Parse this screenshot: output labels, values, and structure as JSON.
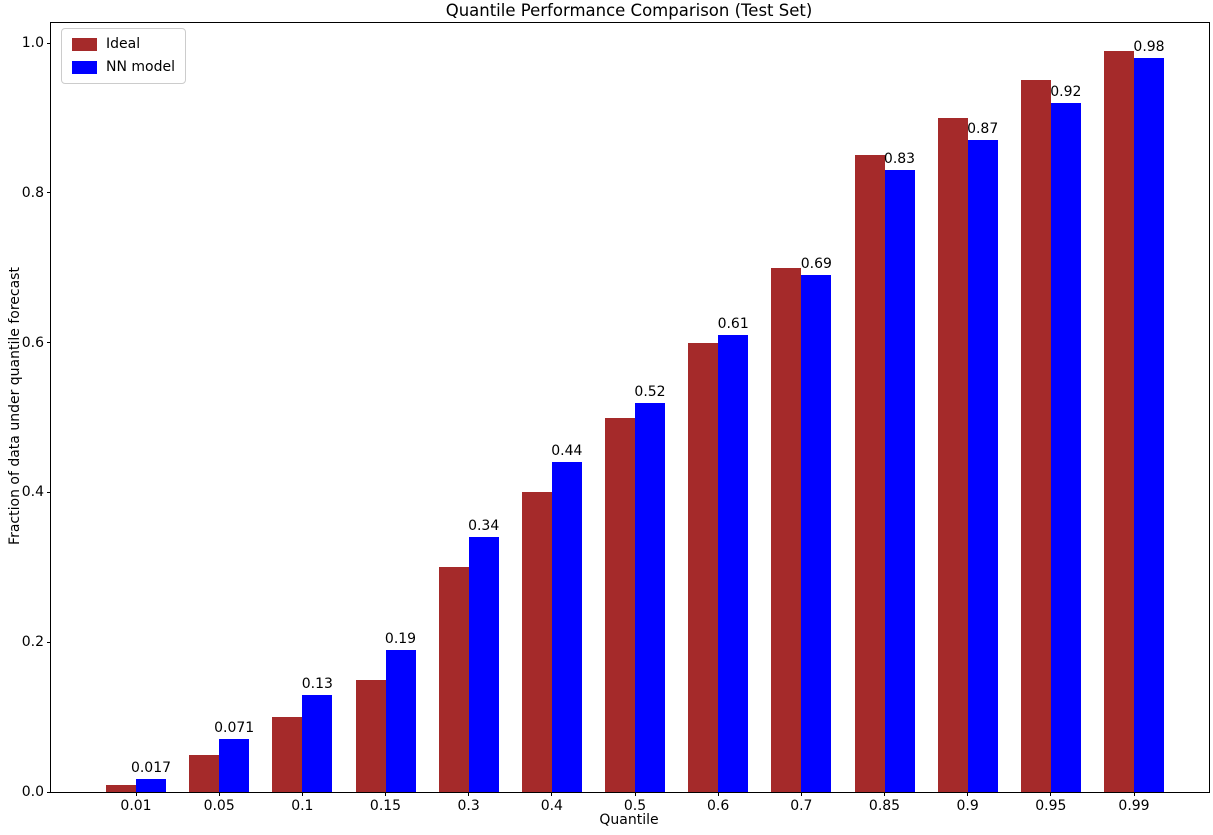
{
  "chart_data": {
    "type": "bar",
    "title": "Quantile Performance Comparison (Test Set)",
    "xlabel": "Quantile",
    "ylabel": "Fraction of data under quantile forecast",
    "categories": [
      "0.01",
      "0.05",
      "0.1",
      "0.15",
      "0.3",
      "0.4",
      "0.5",
      "0.6",
      "0.7",
      "0.85",
      "0.9",
      "0.95",
      "0.99"
    ],
    "series": [
      {
        "name": "Ideal",
        "color": "#A52A2A",
        "values": [
          0.01,
          0.05,
          0.1,
          0.15,
          0.3,
          0.4,
          0.5,
          0.6,
          0.7,
          0.85,
          0.9,
          0.95,
          0.99
        ]
      },
      {
        "name": "NN model",
        "color": "#0000FF",
        "values": [
          0.017,
          0.071,
          0.13,
          0.19,
          0.34,
          0.44,
          0.52,
          0.61,
          0.69,
          0.83,
          0.87,
          0.92,
          0.98
        ],
        "bar_labels": [
          "0.017",
          "0.071",
          "0.13",
          "0.19",
          "0.34",
          "0.44",
          "0.52",
          "0.61",
          "0.69",
          "0.83",
          "0.87",
          "0.92",
          "0.98"
        ]
      }
    ],
    "yticks": [
      "0.0",
      "0.2",
      "0.4",
      "0.6",
      "0.8",
      "1.0"
    ],
    "ylim": [
      0,
      1.027
    ],
    "grid": false,
    "legend_position": "upper-left",
    "background_color": "#ffffff",
    "axis_color": "#000000"
  }
}
